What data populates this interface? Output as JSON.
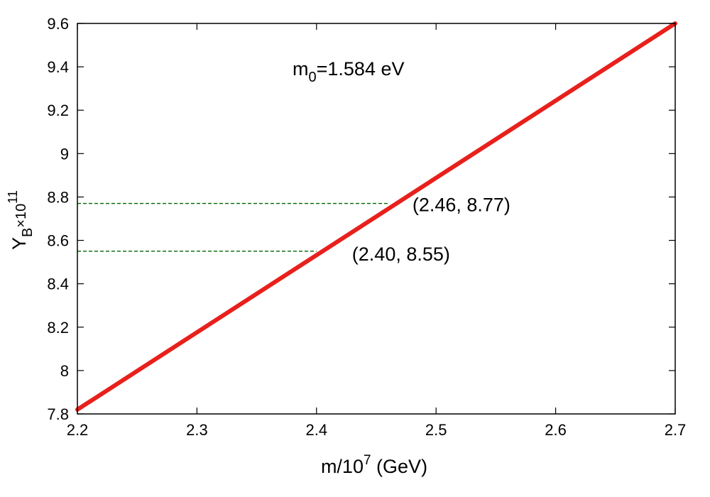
{
  "chart_data": {
    "type": "line",
    "title": "",
    "annotation_main": {
      "base": "m",
      "sub": "0",
      "rest": "=1.584 eV"
    },
    "xlabel": {
      "prefix": "m/10",
      "sup": "7",
      "suffix": " (GeV)"
    },
    "ylabel": {
      "base": "Y",
      "sub": "B",
      "mid": "×10",
      "sup": "11"
    },
    "xlim": [
      2.2,
      2.7
    ],
    "ylim": [
      7.8,
      9.6
    ],
    "xticks": [
      "2.2",
      "2.3",
      "2.4",
      "2.5",
      "2.6",
      "2.7"
    ],
    "yticks": [
      "7.8",
      "8",
      "8.2",
      "8.4",
      "8.6",
      "8.8",
      "9",
      "9.2",
      "9.4",
      "9.6"
    ],
    "grid": false,
    "series": [
      {
        "x": [
          2.2,
          2.7
        ],
        "y": [
          7.82,
          9.6
        ],
        "color": "#e8201c"
      }
    ],
    "points": [
      {
        "x": 2.46,
        "y": 8.77,
        "label": "(2.46, 8.77)"
      },
      {
        "x": 2.4,
        "y": 8.55,
        "label": "(2.40, 8.55)"
      }
    ],
    "guide_color": "#006400"
  }
}
